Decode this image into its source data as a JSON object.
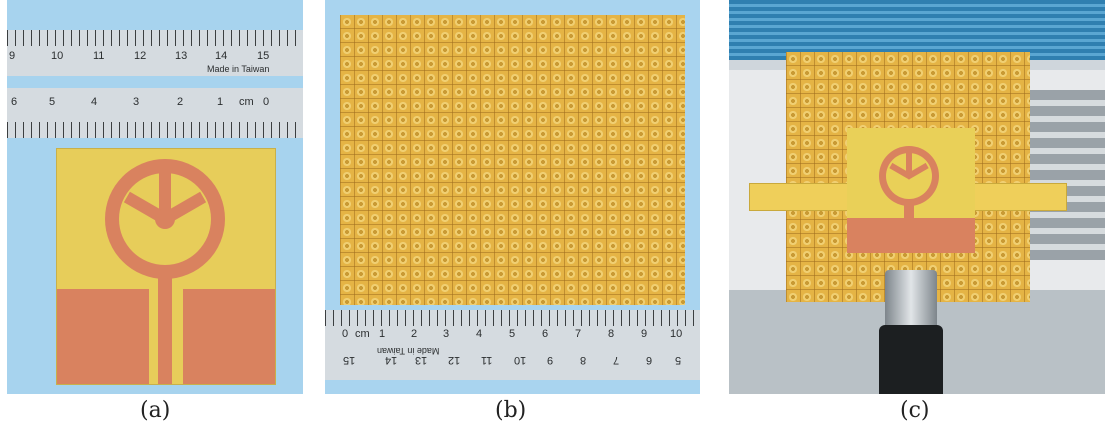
{
  "captions": {
    "a": "(a)",
    "b": "(b)",
    "c": "(c)"
  },
  "ruler_a_top": {
    "numbers": [
      "9",
      "10",
      "11",
      "12",
      "13",
      "14",
      "15"
    ],
    "text": "Made in Taiwan"
  },
  "ruler_a_bottom": {
    "numbers": [
      "6",
      "5",
      "4",
      "3",
      "2",
      "1",
      "cm",
      "0"
    ]
  },
  "ruler_b_top": {
    "numbers": [
      "0",
      "cm",
      "1",
      "2",
      "3",
      "4",
      "5",
      "6",
      "7",
      "8",
      "9",
      "10"
    ]
  },
  "ruler_b_bottom": {
    "numbers": [
      "15",
      "14",
      "13",
      "12",
      "11",
      "10",
      "9",
      "8",
      "7",
      "6",
      "5"
    ],
    "text": "Made in Taiwan"
  },
  "colors": {
    "substrate": "#e7cd5a",
    "copper": "#d9825f",
    "grid_board": "#e5b445",
    "background_blue": "#a7d3ee"
  }
}
